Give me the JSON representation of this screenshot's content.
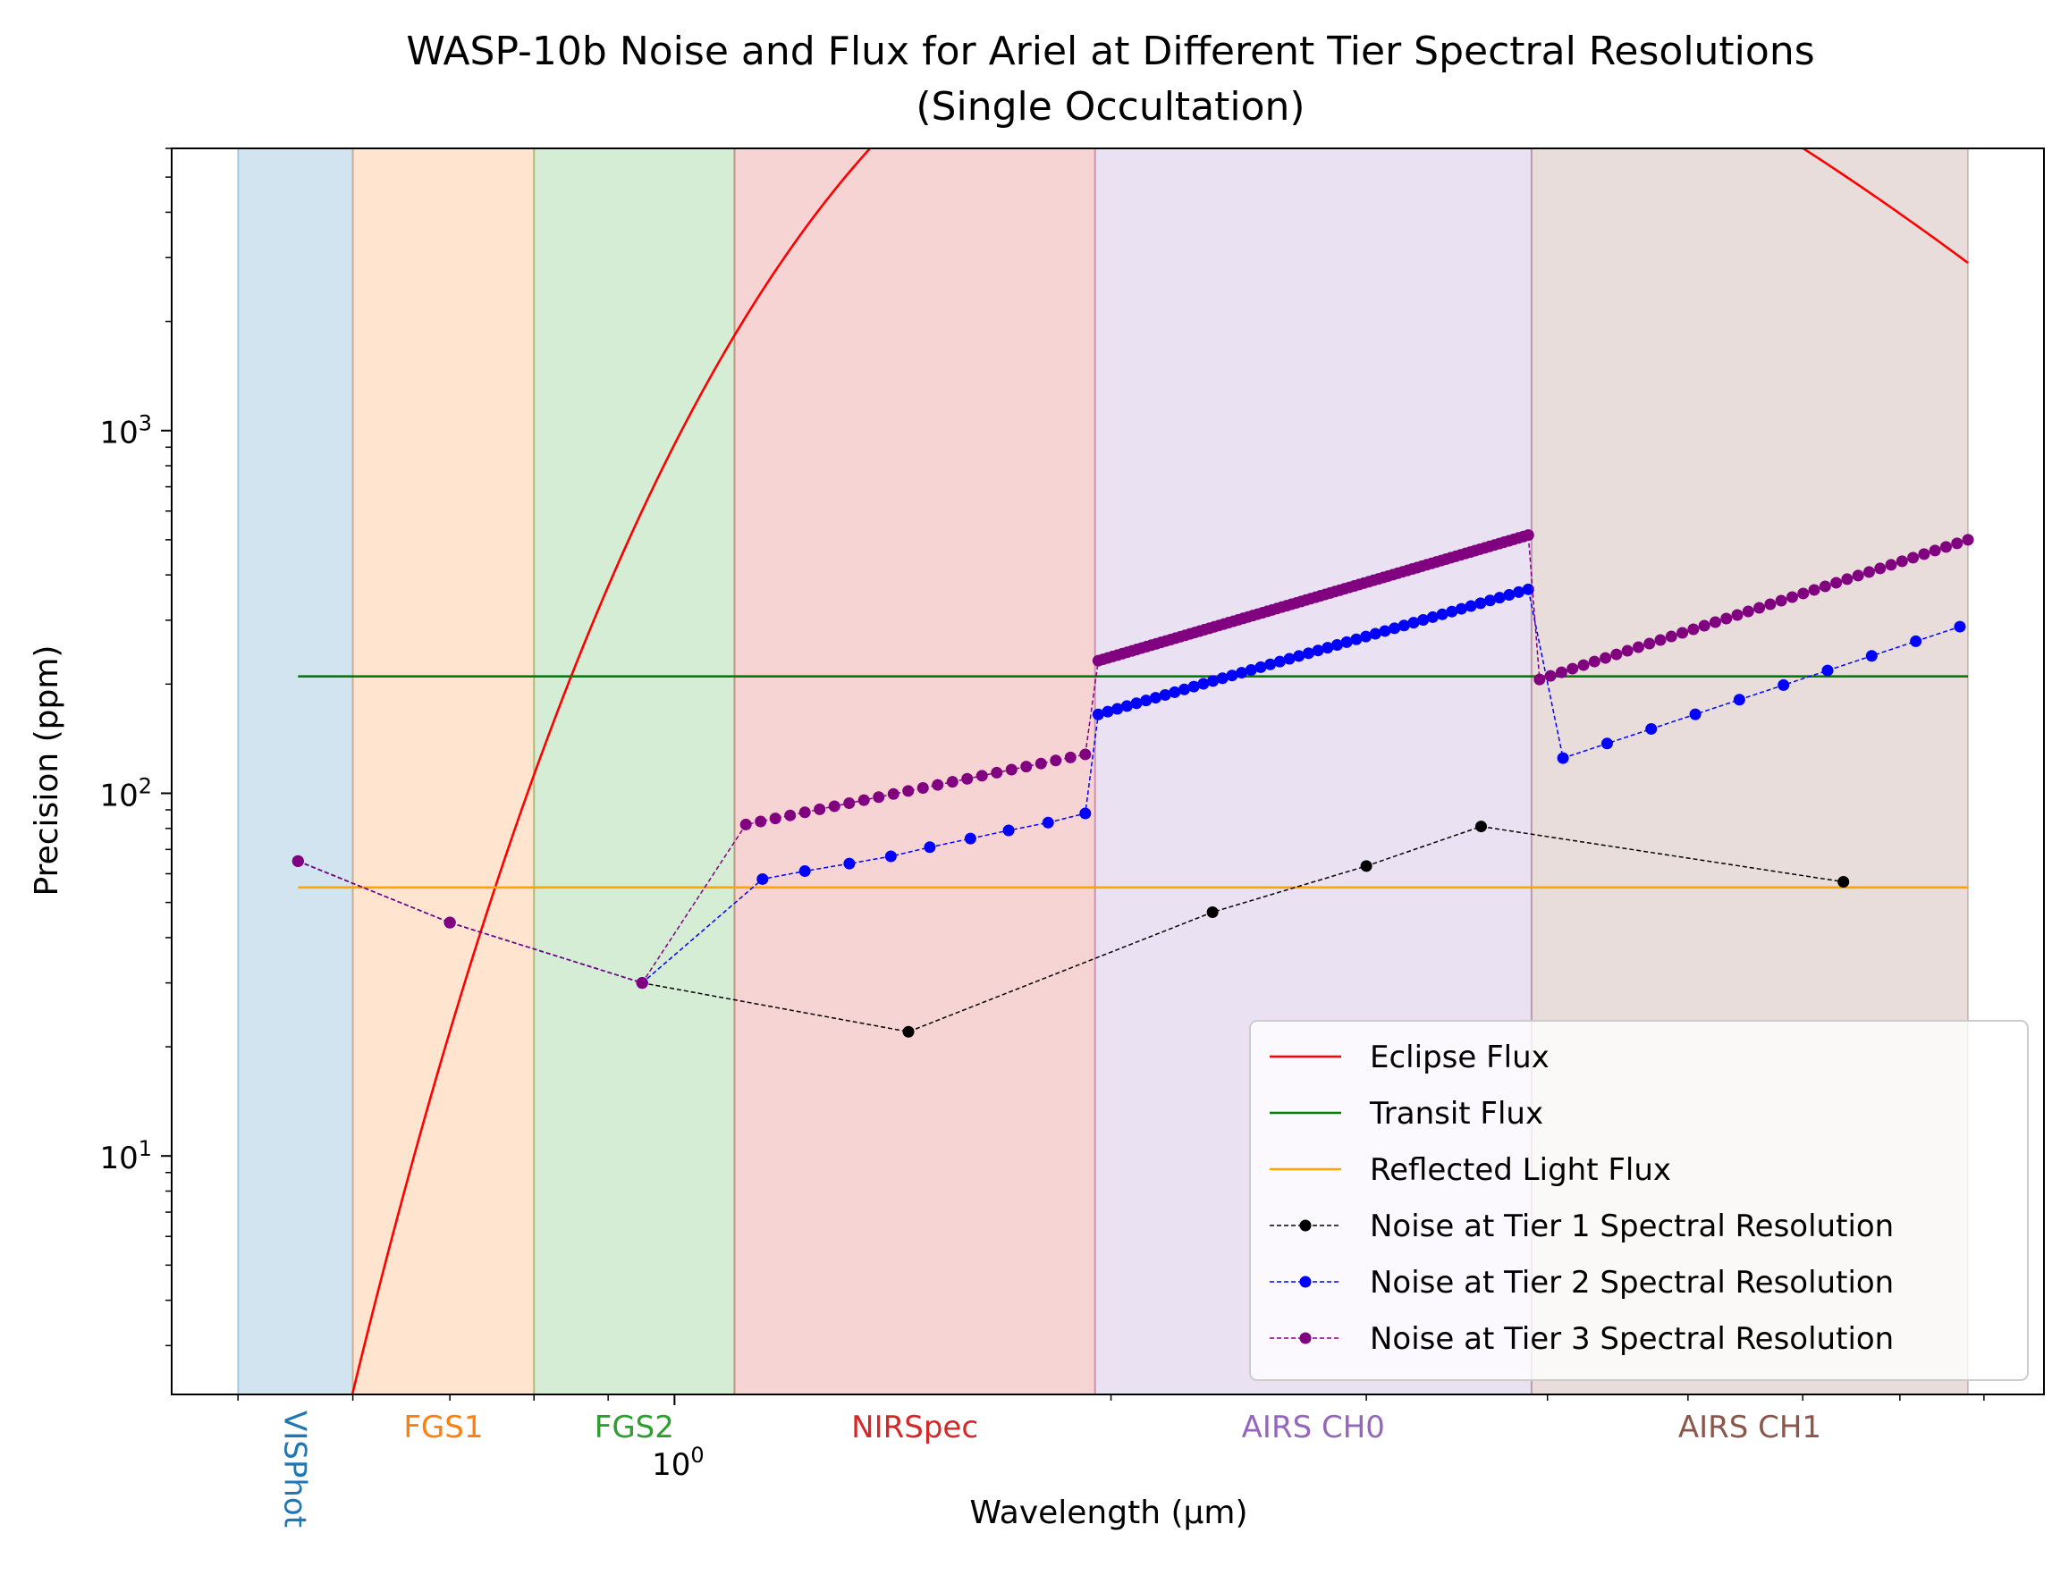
{
  "chart_data": {
    "type": "line",
    "title_lines": [
      "WASP-10b Noise and Flux for Ariel at Different Tier Spectral Resolutions",
      "(Single Occultation)"
    ],
    "xlabel": "Wavelength (μm)",
    "ylabel": "Precision (ppm)",
    "xscale": "log",
    "yscale": "log",
    "xlim": [
      0.45,
      8.8
    ],
    "ylim": [
      2.2,
      6000
    ],
    "x_tick_labels": [
      {
        "value": 1.0,
        "label": "10^0"
      }
    ],
    "y_tick_labels": [
      {
        "value": 10,
        "label": "10^1"
      },
      {
        "value": 100,
        "label": "10^2"
      },
      {
        "value": 1000,
        "label": "10^3"
      }
    ],
    "legend_position": "lower-right",
    "instrument_bands": [
      {
        "name": "VISPhot",
        "x0": 0.5,
        "x1": 0.6,
        "color": "#1f77b4",
        "label_rotated": true
      },
      {
        "name": "FGS1",
        "x0": 0.6,
        "x1": 0.8,
        "color": "#ff7f0e",
        "label_rotated": false
      },
      {
        "name": "FGS2",
        "x0": 0.8,
        "x1": 1.1,
        "color": "#2ca02c",
        "label_rotated": false
      },
      {
        "name": "NIRSpec",
        "x0": 1.1,
        "x1": 1.95,
        "color": "#d62728",
        "label_rotated": false
      },
      {
        "name": "AIRS CH0",
        "x0": 1.95,
        "x1": 3.9,
        "color": "#9467bd",
        "label_rotated": false
      },
      {
        "name": "AIRS CH1",
        "x0": 3.9,
        "x1": 7.8,
        "color": "#8c564b",
        "label_rotated": false
      }
    ],
    "series": [
      {
        "name": "Eclipse Flux",
        "color": "#ff0000",
        "kind": "curve",
        "curve": "blackbody",
        "T_planet": 1119,
        "scale_ppm": 2200000.0,
        "x_range": [
          0.45,
          7.8
        ]
      },
      {
        "name": "Transit Flux",
        "color": "#008000",
        "kind": "hline",
        "y": 210,
        "x_range": [
          0.55,
          7.8
        ]
      },
      {
        "name": "Reflected Light Flux",
        "color": "#ffa500",
        "kind": "hline",
        "y": 55,
        "x_range": [
          0.55,
          7.8
        ]
      },
      {
        "name": "Noise at Tier 1 Spectral Resolution",
        "color": "#000000",
        "kind": "dashed-points",
        "x": [
          0.55,
          0.7,
          0.95,
          1.45,
          2.35,
          3.0,
          3.6,
          6.4
        ],
        "y": [
          65,
          44,
          30,
          22,
          47,
          63,
          81,
          57
        ]
      },
      {
        "name": "Noise at Tier 2 Spectral Resolution",
        "color": "#0000ff",
        "kind": "dashed-points",
        "x": [
          0.55,
          0.7,
          0.95,
          1.15,
          1.23,
          1.32,
          1.41,
          1.5,
          1.6,
          1.7,
          1.81,
          1.92
        ],
        "y": [
          65,
          44,
          30,
          58,
          61,
          64,
          67,
          71,
          75,
          79,
          83,
          88
        ],
        "groups": [
          {
            "x_start": 1.96,
            "x_end": 3.88,
            "count": 46,
            "y_start": 165,
            "y_end": 365
          },
          {
            "x_start": 4.1,
            "x_end": 7.7,
            "count": 10,
            "y_start": 125,
            "y_end": 288
          }
        ]
      },
      {
        "name": "Noise at Tier 3 Spectral Resolution",
        "color": "#800080",
        "kind": "dashed-points",
        "x": [
          0.55,
          0.7,
          0.95
        ],
        "y": [
          65,
          44,
          30
        ],
        "groups": [
          {
            "x_start": 1.12,
            "x_end": 1.92,
            "count": 24,
            "y_start": 82,
            "y_end": 128
          },
          {
            "x_start": 1.96,
            "x_end": 3.88,
            "count": 90,
            "y_start": 232,
            "y_end": 515
          },
          {
            "x_start": 3.95,
            "x_end": 7.8,
            "count": 40,
            "y_start": 206,
            "y_end": 500
          }
        ]
      }
    ]
  }
}
